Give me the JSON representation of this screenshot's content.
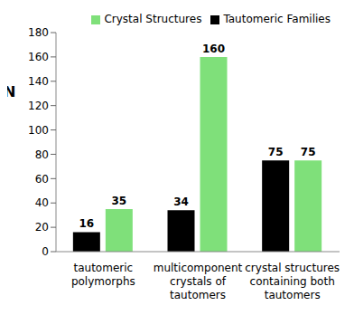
{
  "chart_data": {
    "type": "bar",
    "y_label": "N",
    "categories": [
      "tautomeric polymorphs",
      "multicomponent crystals of tautomers",
      "crystal structures containing both tautomers"
    ],
    "series": [
      {
        "name": "Tautomeric Families",
        "color": "#000000",
        "values": [
          16,
          34,
          75
        ]
      },
      {
        "name": "Crystal Structures",
        "color": "#7fe07a",
        "values": [
          35,
          160,
          75
        ]
      }
    ],
    "ylim": [
      0,
      180
    ],
    "yticks": [
      0,
      20,
      40,
      60,
      80,
      100,
      120,
      140,
      160,
      180
    ],
    "grid": false,
    "legend": "top right",
    "data_labels": true
  }
}
